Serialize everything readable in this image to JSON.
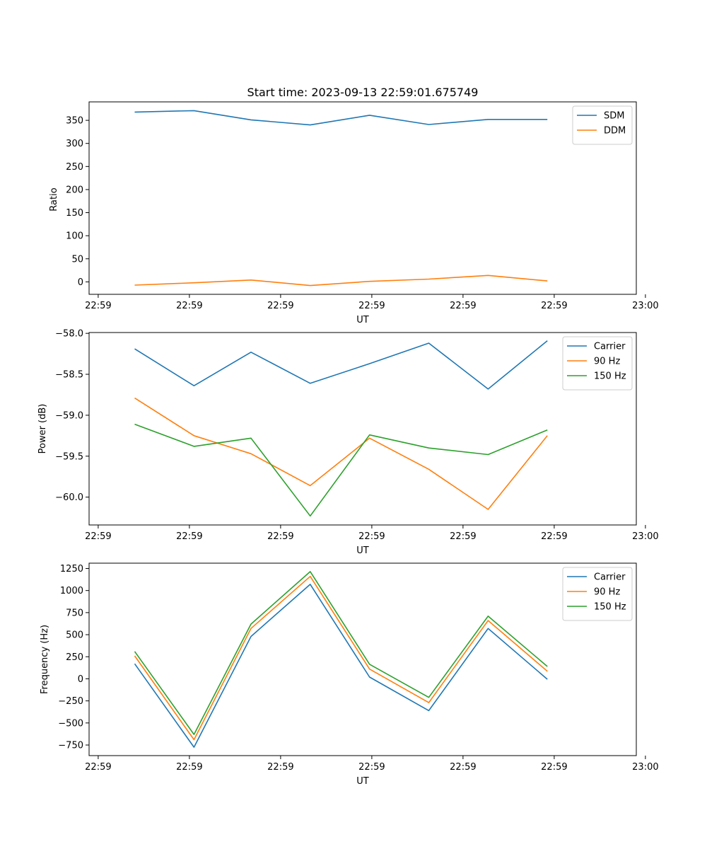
{
  "colors": {
    "blue": "#1f77b4",
    "orange": "#ff7f0e",
    "green": "#2ca02c"
  },
  "chart_data": [
    {
      "type": "line",
      "title": "Start time: 2023-09-13 22:59:01.675749",
      "xlabel": "UT",
      "ylabel": "Ratio",
      "x_points": [
        0.08,
        0.21,
        0.335,
        0.465,
        0.595,
        0.725,
        0.855,
        0.985
      ],
      "xlim": [
        -0.02,
        1.18
      ],
      "x_ticks": [
        0,
        0.2,
        0.4,
        0.6,
        0.8,
        1.0,
        1.2
      ],
      "x_tick_labels": [
        "22:59",
        "22:59",
        "22:59",
        "22:59",
        "22:59",
        "22:59",
        "23:00"
      ],
      "ylim": [
        -27,
        390
      ],
      "y_ticks": [
        0,
        50,
        100,
        150,
        200,
        250,
        300,
        350
      ],
      "y_tick_labels": [
        "0",
        "50",
        "100",
        "150",
        "200",
        "250",
        "300",
        "350"
      ],
      "legend_position": "top-right",
      "series": [
        {
          "name": "SDM",
          "color": "#1f77b4",
          "values": [
            368,
            371,
            351,
            340,
            361,
            341,
            352,
            352
          ]
        },
        {
          "name": "DDM",
          "color": "#ff7f0e",
          "values": [
            -7,
            -2,
            4,
            -8,
            1,
            6,
            14,
            2
          ]
        }
      ]
    },
    {
      "type": "line",
      "title": "",
      "xlabel": "UT",
      "ylabel": "Power (dB)",
      "x_points": [
        0.08,
        0.21,
        0.335,
        0.465,
        0.595,
        0.725,
        0.855,
        0.985
      ],
      "xlim": [
        -0.02,
        1.18
      ],
      "x_ticks": [
        0,
        0.2,
        0.4,
        0.6,
        0.8,
        1.0,
        1.2
      ],
      "x_tick_labels": [
        "22:59",
        "22:59",
        "22:59",
        "22:59",
        "22:59",
        "22:59",
        "23:00"
      ],
      "ylim": [
        -60.34,
        -57.99
      ],
      "y_ticks": [
        -60.0,
        -59.5,
        -59.0,
        -58.5,
        -58.0
      ],
      "y_tick_labels": [
        "−60.0",
        "−59.5",
        "−59.0",
        "−58.5",
        "−58.0"
      ],
      "legend_position": "top-right",
      "series": [
        {
          "name": "Carrier",
          "color": "#1f77b4",
          "values": [
            -58.19,
            -58.64,
            -58.23,
            -58.61,
            -58.37,
            -58.12,
            -58.68,
            -58.09
          ]
        },
        {
          "name": "90 Hz",
          "color": "#ff7f0e",
          "values": [
            -58.79,
            -59.25,
            -59.47,
            -59.86,
            -59.28,
            -59.66,
            -60.15,
            -59.25
          ]
        },
        {
          "name": "150 Hz",
          "color": "#2ca02c",
          "values": [
            -59.11,
            -59.38,
            -59.28,
            -60.23,
            -59.24,
            -59.4,
            -59.48,
            -59.18
          ]
        }
      ]
    },
    {
      "type": "line",
      "title": "",
      "xlabel": "UT",
      "ylabel": "Frequency (Hz)",
      "x_points": [
        0.08,
        0.21,
        0.335,
        0.465,
        0.595,
        0.725,
        0.855,
        0.985
      ],
      "xlim": [
        -0.02,
        1.18
      ],
      "x_ticks": [
        0,
        0.2,
        0.4,
        0.6,
        0.8,
        1.0,
        1.2
      ],
      "x_tick_labels": [
        "22:59",
        "22:59",
        "22:59",
        "22:59",
        "22:59",
        "22:59",
        "23:00"
      ],
      "ylim": [
        -870,
        1310
      ],
      "y_ticks": [
        -750,
        -500,
        -250,
        0,
        250,
        500,
        750,
        1000,
        1250
      ],
      "y_tick_labels": [
        "−750",
        "−500",
        "−250",
        "0",
        "250",
        "500",
        "750",
        "1000",
        "1250"
      ],
      "legend_position": "top-right",
      "series": [
        {
          "name": "Carrier",
          "color": "#1f77b4",
          "values": [
            170,
            -775,
            480,
            1070,
            20,
            -360,
            570,
            -5
          ]
        },
        {
          "name": "90 Hz",
          "color": "#ff7f0e",
          "values": [
            260,
            -690,
            570,
            1160,
            110,
            -270,
            660,
            85
          ]
        },
        {
          "name": "150 Hz",
          "color": "#2ca02c",
          "values": [
            310,
            -630,
            620,
            1215,
            165,
            -210,
            710,
            140
          ]
        }
      ]
    }
  ]
}
